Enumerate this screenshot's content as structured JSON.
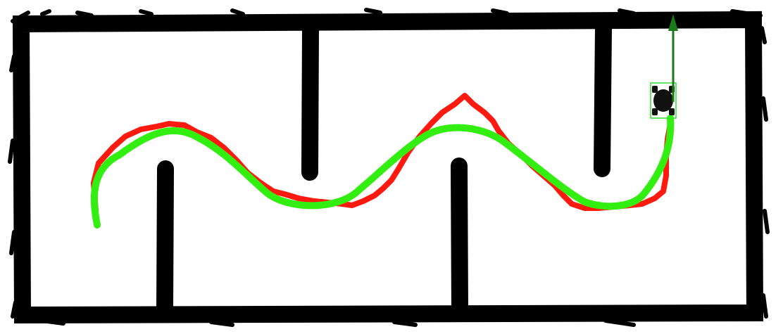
{
  "map": {
    "background_color": "#ffffff",
    "wall_color": "#000000",
    "planned_path_color": "#33ee11",
    "actual_path_color": "#ff1a10",
    "heading_arrow_color": "#1a7a1a",
    "robot_body_color": "#111111",
    "robot_bbox_color": "#33dd33"
  },
  "elements": [
    "occupancy-grid-map",
    "maze-walls",
    "actual-trajectory",
    "planned-path",
    "robot-marker",
    "heading-arrow-icon"
  ]
}
